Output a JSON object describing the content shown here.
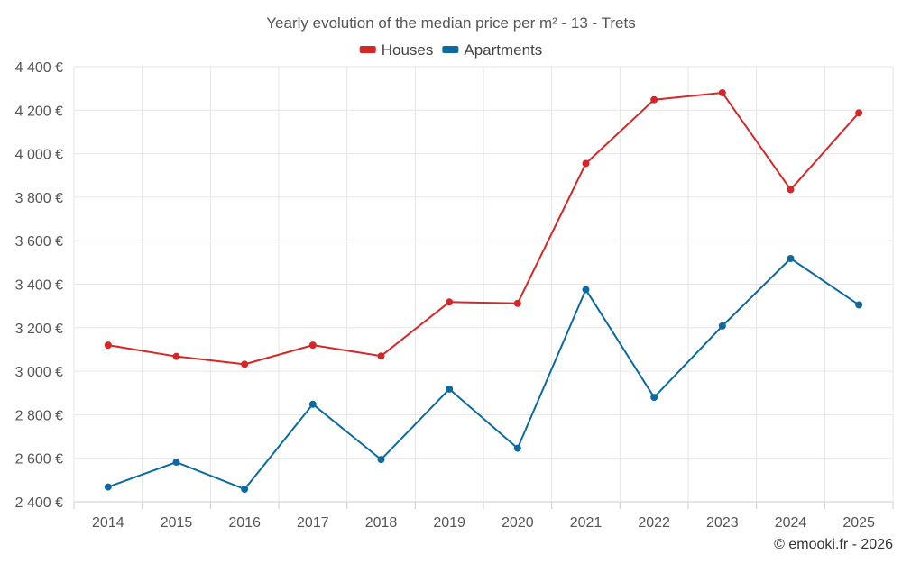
{
  "chart_data": {
    "type": "line",
    "title": "Yearly evolution of the median price per m² - 13 - Trets",
    "categories": [
      "2014",
      "2015",
      "2016",
      "2017",
      "2018",
      "2019",
      "2020",
      "2021",
      "2022",
      "2023",
      "2024",
      "2025"
    ],
    "series": [
      {
        "name": "Houses",
        "color": "#d62728",
        "values": [
          3120,
          3068,
          3032,
          3120,
          3070,
          3318,
          3312,
          3955,
          4248,
          4280,
          3835,
          4188
        ]
      },
      {
        "name": "Apartments",
        "color": "#0b6aa2",
        "values": [
          2468,
          2582,
          2458,
          2848,
          2594,
          2918,
          2646,
          3375,
          2880,
          3208,
          3518,
          3305
        ]
      }
    ],
    "ylim": [
      2400,
      4400
    ],
    "yticks": [
      2400,
      2600,
      2800,
      3000,
      3200,
      3400,
      3600,
      3800,
      4000,
      4200,
      4400
    ],
    "ytick_labels": [
      "2 400 €",
      "2 600 €",
      "2 800 €",
      "3 000 €",
      "3 200 €",
      "3 400 €",
      "3 600 €",
      "3 800 €",
      "4 000 €",
      "4 200 €",
      "4 400 €"
    ],
    "xlabel": "",
    "ylabel": "",
    "grid": true,
    "legend": "top-center"
  },
  "credit": "© emooki.fr - 2026"
}
